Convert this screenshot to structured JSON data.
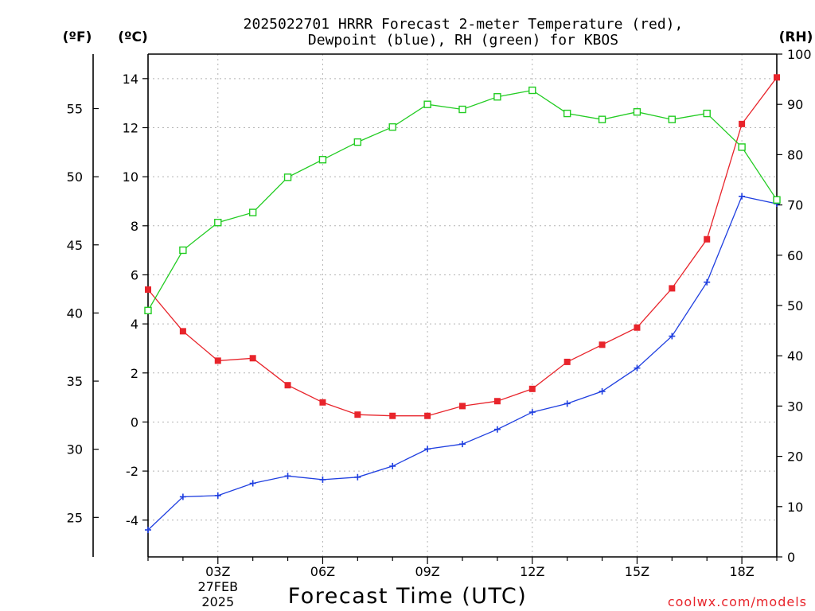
{
  "chart_data": {
    "type": "line",
    "title_line1": "2025022701 HRRR Forecast 2-meter Temperature (red),",
    "title_line2": "Dewpoint (blue), RH (green) for KBOS",
    "xlabel": "Forecast Time (UTC)",
    "unit_f": "(ºF)",
    "unit_c": "(ºC)",
    "unit_rh": "(RH)",
    "credit": "coolwx.com/models",
    "x_hours": [
      1,
      2,
      3,
      4,
      5,
      6,
      7,
      8,
      9,
      10,
      11,
      12,
      13,
      14,
      15,
      16,
      17,
      18,
      19
    ],
    "xlim": [
      1,
      19
    ],
    "x_ticks": [
      {
        "hour": 3,
        "label": "03Z",
        "date": "27FEB",
        "year": "2025"
      },
      {
        "hour": 6,
        "label": "06Z"
      },
      {
        "hour": 9,
        "label": "09Z"
      },
      {
        "hour": 12,
        "label": "12Z"
      },
      {
        "hour": 15,
        "label": "15Z"
      },
      {
        "hour": 18,
        "label": "18Z"
      }
    ],
    "ylim_c": [
      -5.5,
      15
    ],
    "yticks_c": [
      "-4",
      "-2",
      "0",
      "2",
      "4",
      "6",
      "8",
      "10",
      "12",
      "14"
    ],
    "yticks_f": [
      "25",
      "30",
      "35",
      "40",
      "45",
      "50",
      "55"
    ],
    "ylim_rh": [
      0,
      100
    ],
    "yticks_rh": [
      "0",
      "10",
      "20",
      "30",
      "40",
      "50",
      "60",
      "70",
      "80",
      "90",
      "100"
    ],
    "grid": true,
    "series": [
      {
        "name": "Temperature",
        "axis": "c",
        "color": "#e8242b",
        "marker": "filled-square",
        "values": [
          5.4,
          3.7,
          2.5,
          2.6,
          1.5,
          0.8,
          0.3,
          0.25,
          0.25,
          0.65,
          0.85,
          1.35,
          2.45,
          3.15,
          3.85,
          5.45,
          7.45,
          12.15,
          14.05
        ]
      },
      {
        "name": "Dewpoint",
        "axis": "c",
        "color": "#1f3fe0",
        "marker": "plus",
        "values": [
          -4.4,
          -3.05,
          -3.0,
          -2.5,
          -2.2,
          -2.35,
          -2.25,
          -1.8,
          -1.1,
          -0.9,
          -0.3,
          0.4,
          0.75,
          1.25,
          2.2,
          3.5,
          5.7,
          9.2,
          8.9
        ]
      },
      {
        "name": "RH",
        "axis": "rh",
        "color": "#22cc22",
        "marker": "open-square",
        "values": [
          49,
          61,
          66.5,
          68.5,
          75.5,
          79,
          82.5,
          85.5,
          90,
          89,
          91.5,
          92.8,
          88.2,
          87,
          88.5,
          87,
          88.2,
          81.5,
          71
        ]
      }
    ]
  }
}
